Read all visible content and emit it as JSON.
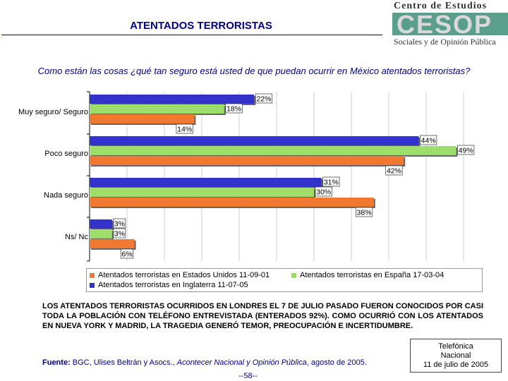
{
  "header": {
    "title": "ATENTADOS TERRORISTAS",
    "logo": {
      "top": "Centro de Estudios",
      "letters": "CESOP",
      "bottom": "Sociales y de Opinión Pública"
    }
  },
  "question": "Como están las cosas ¿qué tan seguro está usted de que puedan ocurrir en México atentados terroristas?",
  "colors": {
    "usa": "#f07830",
    "spain": "#99dd66",
    "england": "#3333cc"
  },
  "chart_data": {
    "type": "bar",
    "orientation": "horizontal",
    "categories": [
      "Muy seguro/ Seguro",
      "Poco seguro",
      "Nada seguro",
      "Ns/ Nc"
    ],
    "series": [
      {
        "name": "Atentados terroristas en Inglaterra 11-07-05",
        "values": [
          22,
          44,
          31,
          3
        ],
        "labels": [
          "22%",
          "44%",
          "31%",
          "3%"
        ]
      },
      {
        "name": "Atentados terroristas en España 17-03-04",
        "values": [
          18,
          49,
          30,
          3
        ],
        "labels": [
          "18%",
          "49%",
          "30%",
          "3%"
        ]
      },
      {
        "name": "Atentados terroristas en Estados Unidos 11-09-01",
        "values": [
          14,
          42,
          38,
          6
        ],
        "labels": [
          "14%",
          "42%",
          "38%",
          "6%"
        ]
      }
    ],
    "xlim": [
      0,
      50
    ],
    "grid": true,
    "legend_position": "bottom"
  },
  "legend": {
    "usa": "Atentados terroristas en Estados Unidos 11-09-01",
    "spain": "Atentados terroristas en España 17-03-04",
    "england": "Atentados terroristas en Inglaterra 11-07-05"
  },
  "summary": "LOS ATENTADOS TERRORISTAS OCURRIDOS EN LONDRES EL 7 DE JULIO PASADO FUERON CONOCIDOS POR CASI TODA LA POBLACIÓN CON TELÉFONO ENTREVISTADA (ENTERADOS 92%). COMO OCURRIÓ CON LOS ATENTADOS EN NUEVA YORK Y MADRID, LA TRAGEDIA GENERÓ TEMOR, PREOCUPACIÓN E INCERTIDUMBRE.",
  "source": {
    "label": "Fuente:",
    "text1": " BGC, Ulises Beltrán y Asocs., ",
    "publication": "Acontecer Nacional y Opinión Pública",
    "text2": ", agosto de 2005."
  },
  "method": {
    "line1": "Telefónica",
    "line2": "Nacional",
    "line3": "11 de julio de 2005"
  },
  "page_number": "--58--"
}
